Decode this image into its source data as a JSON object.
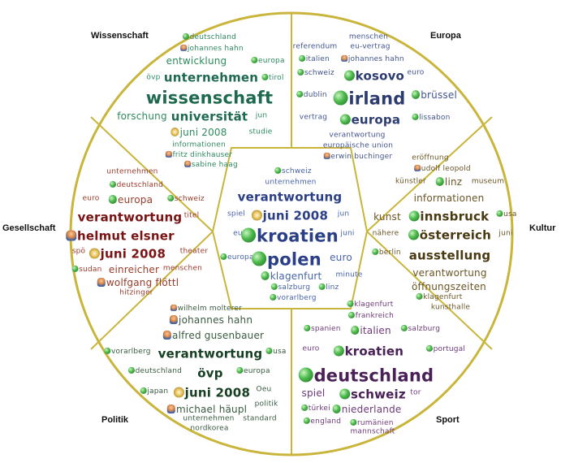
{
  "colors": {
    "wheel_stroke": "#c9b53c",
    "wissenschaft": "#1f6a4f",
    "europa": "#2c3c70",
    "kultur": "#4a3a12",
    "sport": "#4a2156",
    "politik": "#173f22",
    "gesellschaft": "#7a1414",
    "center": "#2a3f86"
  },
  "categories": {
    "wissenschaft": "Wissenschaft",
    "europa": "Europa",
    "kultur": "Kultur",
    "sport": "Sport",
    "politik": "Politik",
    "gesellschaft": "Gesellschaft"
  },
  "sectors": {
    "wissenschaft": [
      {
        "text": "deutschland",
        "icon": "globe-icon",
        "size": 1
      },
      {
        "text": "johannes hahn",
        "icon": "person-icon",
        "size": 1
      },
      {
        "text": "entwicklung",
        "icon": "",
        "size": 2
      },
      {
        "text": "europa",
        "icon": "globe-icon",
        "size": 1
      },
      {
        "text": "övp",
        "icon": "",
        "size": 1
      },
      {
        "text": "unternehmen",
        "icon": "",
        "size": 3
      },
      {
        "text": "tirol",
        "icon": "globe-icon",
        "size": 1
      },
      {
        "text": "wissenschaft",
        "icon": "",
        "size": 4
      },
      {
        "text": "forschung",
        "icon": "",
        "size": 2
      },
      {
        "text": "universität",
        "icon": "",
        "size": 3
      },
      {
        "text": "jun",
        "icon": "",
        "size": 1
      },
      {
        "text": "juni 2008",
        "icon": "date-icon",
        "size": 2
      },
      {
        "text": "studie",
        "icon": "",
        "size": 1
      },
      {
        "text": "informationen",
        "icon": "",
        "size": 1
      },
      {
        "text": "fritz dinkhauser",
        "icon": "person-icon",
        "size": 1
      },
      {
        "text": "sabine haag",
        "icon": "person-icon",
        "size": 1
      }
    ],
    "europa": [
      {
        "text": "menschen",
        "icon": "",
        "size": 1
      },
      {
        "text": "referendum",
        "icon": "",
        "size": 1
      },
      {
        "text": "eu-vertrag",
        "icon": "",
        "size": 1
      },
      {
        "text": "italien",
        "icon": "globe-icon",
        "size": 1
      },
      {
        "text": "johannes hahn",
        "icon": "person-icon",
        "size": 1
      },
      {
        "text": "schweiz",
        "icon": "globe-icon",
        "size": 1
      },
      {
        "text": "kosovo",
        "icon": "globe-icon",
        "size": 3
      },
      {
        "text": "euro",
        "icon": "",
        "size": 1
      },
      {
        "text": "dublin",
        "icon": "globe-icon",
        "size": 1
      },
      {
        "text": "irland",
        "icon": "globe-icon",
        "size": 4
      },
      {
        "text": "brüssel",
        "icon": "globe-icon",
        "size": 2
      },
      {
        "text": "vertrag",
        "icon": "",
        "size": 1
      },
      {
        "text": "europa",
        "icon": "globe-icon",
        "size": 3
      },
      {
        "text": "lissabon",
        "icon": "globe-icon",
        "size": 1
      },
      {
        "text": "verantwortung",
        "icon": "",
        "size": 1
      },
      {
        "text": "europäische union",
        "icon": "",
        "size": 1
      },
      {
        "text": "erwin buchinger",
        "icon": "person-icon",
        "size": 1
      }
    ],
    "kultur": [
      {
        "text": "eröffnung",
        "icon": "",
        "size": 1
      },
      {
        "text": "udolf leopold",
        "icon": "person-icon",
        "size": 1
      },
      {
        "text": "künstler",
        "icon": "",
        "size": 1
      },
      {
        "text": "linz",
        "icon": "globe-icon",
        "size": 2
      },
      {
        "text": "museum",
        "icon": "",
        "size": 1
      },
      {
        "text": "informationen",
        "icon": "",
        "size": 2
      },
      {
        "text": "kunst",
        "icon": "",
        "size": 2
      },
      {
        "text": "innsbruck",
        "icon": "globe-icon",
        "size": 3
      },
      {
        "text": "usa",
        "icon": "globe-icon",
        "size": 1
      },
      {
        "text": "nähere",
        "icon": "",
        "size": 1
      },
      {
        "text": "österreich",
        "icon": "globe-icon",
        "size": 3
      },
      {
        "text": "juni",
        "icon": "",
        "size": 1
      },
      {
        "text": "berlin",
        "icon": "globe-icon",
        "size": 1
      },
      {
        "text": "ausstellung",
        "icon": "",
        "size": 3
      },
      {
        "text": "verantwortung",
        "icon": "",
        "size": 2
      },
      {
        "text": "öffnungszeiten",
        "icon": "",
        "size": 2
      },
      {
        "text": "klagenfurt",
        "icon": "globe-icon",
        "size": 1
      },
      {
        "text": "kunsthalle",
        "icon": "",
        "size": 1
      }
    ],
    "sport": [
      {
        "text": "klagenfurt",
        "icon": "globe-icon",
        "size": 1
      },
      {
        "text": "frankreich",
        "icon": "globe-icon",
        "size": 1
      },
      {
        "text": "spanien",
        "icon": "globe-icon",
        "size": 1
      },
      {
        "text": "italien",
        "icon": "globe-icon",
        "size": 2
      },
      {
        "text": "salzburg",
        "icon": "globe-icon",
        "size": 1
      },
      {
        "text": "euro",
        "icon": "",
        "size": 1
      },
      {
        "text": "kroatien",
        "icon": "globe-icon",
        "size": 3
      },
      {
        "text": "portugal",
        "icon": "globe-icon",
        "size": 1
      },
      {
        "text": "deutschland",
        "icon": "globe-icon",
        "size": 4
      },
      {
        "text": "spiel",
        "icon": "",
        "size": 2
      },
      {
        "text": "schweiz",
        "icon": "globe-icon",
        "size": 3
      },
      {
        "text": "tor",
        "icon": "",
        "size": 1
      },
      {
        "text": "türkei",
        "icon": "globe-icon",
        "size": 1
      },
      {
        "text": "niederlande",
        "icon": "globe-icon",
        "size": 2
      },
      {
        "text": "england",
        "icon": "globe-icon",
        "size": 1
      },
      {
        "text": "rumänien",
        "icon": "globe-icon",
        "size": 1
      },
      {
        "text": "mannschaft",
        "icon": "",
        "size": 1
      }
    ],
    "politik": [
      {
        "text": "wilhelm molterer",
        "icon": "person-icon",
        "size": 1
      },
      {
        "text": "johannes hahn",
        "icon": "person-icon",
        "size": 2
      },
      {
        "text": "alfred gusenbauer",
        "icon": "person-icon",
        "size": 2
      },
      {
        "text": "vorarlberg",
        "icon": "globe-icon",
        "size": 1
      },
      {
        "text": "verantwortung",
        "icon": "",
        "size": 3
      },
      {
        "text": "usa",
        "icon": "globe-icon",
        "size": 1
      },
      {
        "text": "deutschland",
        "icon": "globe-icon",
        "size": 1
      },
      {
        "text": "övp",
        "icon": "",
        "size": 3
      },
      {
        "text": "europa",
        "icon": "globe-icon",
        "size": 1
      },
      {
        "text": "japan",
        "icon": "globe-icon",
        "size": 1
      },
      {
        "text": "juni 2008",
        "icon": "date-icon",
        "size": 3
      },
      {
        "text": "Oeu",
        "icon": "",
        "size": 1
      },
      {
        "text": "michael häupl",
        "icon": "person-icon",
        "size": 2
      },
      {
        "text": "politik",
        "icon": "",
        "size": 1
      },
      {
        "text": "unternehmen",
        "icon": "",
        "size": 1
      },
      {
        "text": "standard",
        "icon": "",
        "size": 1
      },
      {
        "text": "nordkorea",
        "icon": "",
        "size": 1
      }
    ],
    "gesellschaft": [
      {
        "text": "unternehmen",
        "icon": "",
        "size": 1
      },
      {
        "text": "deutschland",
        "icon": "globe-icon",
        "size": 1
      },
      {
        "text": "euro",
        "icon": "",
        "size": 1
      },
      {
        "text": "europa",
        "icon": "globe-icon",
        "size": 2
      },
      {
        "text": "schweiz",
        "icon": "globe-icon",
        "size": 1
      },
      {
        "text": "verantwortung",
        "icon": "",
        "size": 3
      },
      {
        "text": "titel",
        "icon": "",
        "size": 1
      },
      {
        "text": "helmut elsner",
        "icon": "person-icon",
        "size": 3
      },
      {
        "text": "spö",
        "icon": "",
        "size": 1
      },
      {
        "text": "juni 2008",
        "icon": "date-icon",
        "size": 3
      },
      {
        "text": "theater",
        "icon": "",
        "size": 1
      },
      {
        "text": "sudan",
        "icon": "globe-icon",
        "size": 1
      },
      {
        "text": "einreicher",
        "icon": "",
        "size": 2
      },
      {
        "text": "menschen",
        "icon": "",
        "size": 1
      },
      {
        "text": "wolfgang flöttl",
        "icon": "person-icon",
        "size": 2
      },
      {
        "text": "hitzinger",
        "icon": "",
        "size": 1
      }
    ],
    "center": [
      {
        "text": "schweiz",
        "icon": "globe-icon",
        "size": 1
      },
      {
        "text": "unternehmen",
        "icon": "",
        "size": 1
      },
      {
        "text": "verantwortung",
        "icon": "",
        "size": 3
      },
      {
        "text": "spiel",
        "icon": "",
        "size": 1
      },
      {
        "text": "juni 2008",
        "icon": "date-icon",
        "size": 3
      },
      {
        "text": "jun",
        "icon": "",
        "size": 1
      },
      {
        "text": "eu",
        "icon": "",
        "size": 1
      },
      {
        "text": "kroatien",
        "icon": "globe-icon",
        "size": 4
      },
      {
        "text": "juni",
        "icon": "",
        "size": 1
      },
      {
        "text": "europa",
        "icon": "globe-icon",
        "size": 1
      },
      {
        "text": "polen",
        "icon": "globe-icon",
        "size": 4
      },
      {
        "text": "euro",
        "icon": "",
        "size": 2
      },
      {
        "text": "klagenfurt",
        "icon": "globe-icon",
        "size": 2
      },
      {
        "text": "minute",
        "icon": "",
        "size": 1
      },
      {
        "text": "salzburg",
        "icon": "globe-icon",
        "size": 1
      },
      {
        "text": "linz",
        "icon": "globe-icon",
        "size": 1
      },
      {
        "text": "vorarlberg",
        "icon": "globe-icon",
        "size": 1
      }
    ]
  }
}
